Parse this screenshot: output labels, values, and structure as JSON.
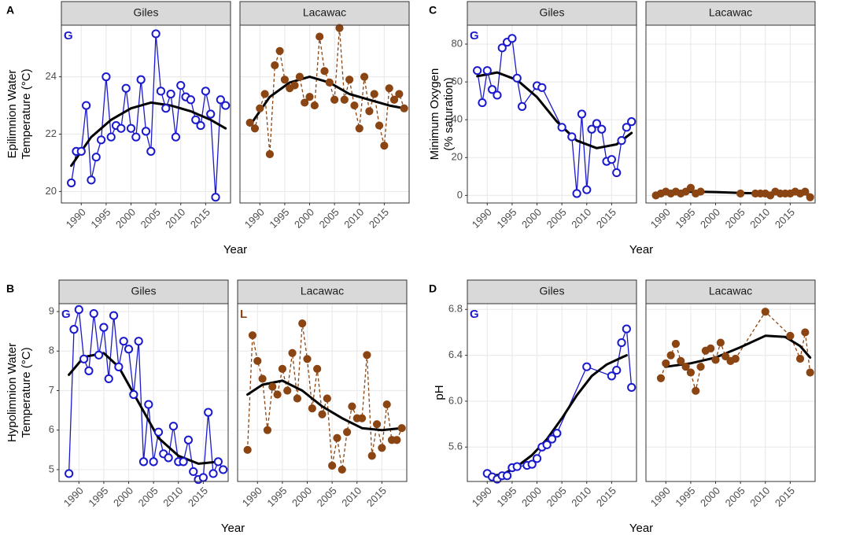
{
  "chart_data": [
    {
      "type": "line",
      "panel_label": "A",
      "ylabel": [
        "Epilimnion Water",
        "Temperature (°C)"
      ],
      "xlabel": "Year",
      "xlim": [
        1986,
        2020
      ],
      "xticks": [
        1990,
        1995,
        2000,
        2005,
        2010,
        2015
      ],
      "ylim": [
        19.6,
        25.8
      ],
      "yticks": [
        20,
        22,
        24
      ],
      "grid": true,
      "facets": [
        {
          "strip": "Giles",
          "annotation": "G",
          "series": [
            {
              "color": "#1a1acc",
              "marker": "open",
              "linestyle": "solid",
              "x": [
                1988,
                1989,
                1990,
                1991,
                1992,
                1993,
                1994,
                1995,
                1996,
                1997,
                1998,
                1999,
                2000,
                2001,
                2002,
                2003,
                2004,
                2005,
                2006,
                2007,
                2008,
                2009,
                2010,
                2011,
                2012,
                2013,
                2014,
                2015,
                2016,
                2017,
                2018,
                2019
              ],
              "values": [
                20.3,
                21.4,
                21.4,
                23.0,
                20.4,
                21.2,
                21.8,
                24.0,
                21.9,
                22.3,
                22.2,
                23.6,
                22.2,
                21.9,
                23.9,
                22.1,
                21.4,
                25.5,
                23.5,
                22.9,
                23.4,
                21.9,
                23.7,
                23.3,
                23.2,
                22.5,
                22.3,
                23.5,
                22.7,
                19.8,
                23.2,
                23.0
              ]
            },
            {
              "color": "#000000",
              "smooth": true,
              "x": [
                1988,
                1992,
                1996,
                2000,
                2004,
                2008,
                2012,
                2016,
                2019
              ],
              "values": [
                20.9,
                21.9,
                22.5,
                22.9,
                23.1,
                23.0,
                22.8,
                22.5,
                22.2
              ]
            }
          ]
        },
        {
          "strip": "Lacawac",
          "series": [
            {
              "color": "#8b4513",
              "marker": "filled",
              "linestyle": "dashed",
              "x": [
                1988,
                1989,
                1990,
                1991,
                1992,
                1993,
                1994,
                1995,
                1996,
                1997,
                1998,
                1999,
                2000,
                2001,
                2002,
                2003,
                2004,
                2005,
                2006,
                2007,
                2008,
                2009,
                2010,
                2011,
                2012,
                2013,
                2014,
                2015,
                2016,
                2017,
                2018,
                2019
              ],
              "values": [
                22.4,
                22.2,
                22.9,
                23.4,
                21.3,
                24.4,
                24.9,
                23.9,
                23.6,
                23.7,
                24.0,
                23.1,
                23.3,
                23.0,
                25.4,
                24.2,
                23.8,
                23.2,
                25.7,
                23.2,
                23.9,
                23.0,
                22.2,
                24.0,
                22.8,
                23.4,
                22.3,
                21.6,
                23.6,
                23.2,
                23.4,
                22.9
              ]
            },
            {
              "color": "#000000",
              "smooth": true,
              "x": [
                1988,
                1992,
                1996,
                2000,
                2004,
                2008,
                2012,
                2016,
                2019
              ],
              "values": [
                22.3,
                23.3,
                23.8,
                24.0,
                23.8,
                23.4,
                23.2,
                23.0,
                22.9
              ]
            }
          ]
        }
      ]
    },
    {
      "type": "line",
      "panel_label": "B",
      "ylabel": [
        "Hypolimnion Water",
        "Temperature (°C)"
      ],
      "xlabel": "Year",
      "xlim": [
        1986,
        2020
      ],
      "xticks": [
        1990,
        1995,
        2000,
        2005,
        2010,
        2015
      ],
      "ylim": [
        4.7,
        9.2
      ],
      "yticks": [
        5,
        6,
        7,
        8,
        9
      ],
      "grid": true,
      "facets": [
        {
          "strip": "Giles",
          "annotation": "G",
          "series": [
            {
              "color": "#1a1acc",
              "marker": "open",
              "linestyle": "solid",
              "x": [
                1988,
                1989,
                1990,
                1991,
                1992,
                1993,
                1994,
                1995,
                1996,
                1997,
                1998,
                1999,
                2000,
                2001,
                2002,
                2003,
                2004,
                2005,
                2006,
                2007,
                2008,
                2009,
                2010,
                2011,
                2012,
                2013,
                2014,
                2015,
                2016,
                2017,
                2018,
                2019
              ],
              "values": [
                4.9,
                8.55,
                9.05,
                7.8,
                7.5,
                8.95,
                7.9,
                8.6,
                7.3,
                8.9,
                7.6,
                8.25,
                8.05,
                6.9,
                8.25,
                5.2,
                6.65,
                5.2,
                5.95,
                5.4,
                5.3,
                6.1,
                5.2,
                5.2,
                5.75,
                4.95,
                4.75,
                4.8,
                6.45,
                4.9,
                5.2,
                5.0
              ]
            },
            {
              "color": "#000000",
              "smooth": true,
              "x": [
                1988,
                1991,
                1995,
                1998,
                2002,
                2006,
                2010,
                2014,
                2018
              ],
              "values": [
                7.4,
                7.85,
                7.95,
                7.6,
                6.7,
                5.8,
                5.35,
                5.15,
                5.2
              ]
            }
          ]
        },
        {
          "strip": "Lacawac",
          "annotation": "L",
          "series": [
            {
              "color": "#8b4513",
              "marker": "filled",
              "linestyle": "dashed",
              "x": [
                1988,
                1989,
                1990,
                1991,
                1992,
                1993,
                1994,
                1995,
                1996,
                1997,
                1998,
                1999,
                2000,
                2001,
                2002,
                2003,
                2004,
                2005,
                2006,
                2007,
                2008,
                2009,
                2010,
                2011,
                2012,
                2013,
                2014,
                2015,
                2016,
                2017,
                2018,
                2019
              ],
              "values": [
                5.5,
                8.4,
                7.75,
                7.3,
                6.0,
                7.1,
                6.9,
                7.55,
                7.0,
                7.95,
                6.8,
                8.7,
                7.8,
                6.55,
                7.55,
                6.4,
                6.8,
                5.1,
                5.8,
                5.0,
                5.95,
                6.6,
                6.3,
                6.3,
                7.9,
                5.35,
                6.15,
                5.55,
                6.65,
                5.75,
                5.75,
                6.05
              ]
            },
            {
              "color": "#000000",
              "smooth": true,
              "x": [
                1988,
                1991,
                1995,
                1999,
                2003,
                2007,
                2011,
                2015,
                2019
              ],
              "values": [
                6.9,
                7.15,
                7.25,
                7.0,
                6.6,
                6.3,
                6.05,
                6.0,
                6.05
              ]
            }
          ]
        }
      ]
    },
    {
      "type": "line",
      "panel_label": "C",
      "ylabel": [
        "Minimum Oxygen",
        "(% saturation)"
      ],
      "xlabel": "Year",
      "xlim": [
        1986,
        2020
      ],
      "xticks": [
        1990,
        1995,
        2000,
        2005,
        2010,
        2015
      ],
      "ylim": [
        -4,
        90
      ],
      "yticks": [
        0,
        20,
        40,
        60,
        80
      ],
      "grid": true,
      "facets": [
        {
          "strip": "Giles",
          "annotation": "G",
          "series": [
            {
              "color": "#1a1acc",
              "marker": "open",
              "linestyle": "solid",
              "x": [
                1988,
                1989,
                1990,
                1991,
                1992,
                1993,
                1994,
                1995,
                1996,
                1997,
                2000,
                2001,
                2005,
                2007,
                2008,
                2009,
                2010,
                2011,
                2012,
                2013,
                2014,
                2015,
                2016,
                2017,
                2018,
                2019
              ],
              "values": [
                66,
                49,
                66,
                56,
                53,
                78,
                81,
                83,
                62,
                47,
                58,
                57,
                36,
                31,
                1,
                43,
                3,
                35,
                38,
                35,
                18,
                19,
                12,
                29,
                36,
                39
              ]
            },
            {
              "color": "#000000",
              "smooth": true,
              "x": [
                1988,
                1992,
                1996,
                2000,
                2004,
                2008,
                2012,
                2016,
                2019
              ],
              "values": [
                63,
                65,
                61,
                52,
                39,
                29,
                25,
                27,
                33
              ]
            }
          ]
        },
        {
          "strip": "Lacawac",
          "series": [
            {
              "color": "#8b4513",
              "marker": "filled",
              "linestyle": "dashed",
              "x": [
                1988,
                1989,
                1990,
                1991,
                1992,
                1993,
                1994,
                1995,
                1996,
                1997,
                2005,
                2008,
                2009,
                2010,
                2011,
                2012,
                2013,
                2014,
                2015,
                2016,
                2017,
                2018,
                2019
              ],
              "values": [
                0,
                1,
                2,
                1,
                2,
                1,
                2,
                4,
                1,
                2,
                1,
                1,
                1,
                1,
                0,
                2,
                1,
                1,
                1,
                2,
                1,
                2,
                -1
              ]
            },
            {
              "color": "#000000",
              "smooth": true,
              "x": [
                1988,
                1995,
                2000,
                2005,
                2010,
                2015,
                2019
              ],
              "values": [
                1,
                2,
                1.8,
                1.3,
                1,
                1,
                0.5
              ]
            }
          ]
        }
      ]
    },
    {
      "type": "line",
      "panel_label": "D",
      "ylabel": [
        "pH"
      ],
      "xlabel": "Year",
      "xlim": [
        1986,
        2020
      ],
      "xticks": [
        1990,
        1995,
        2000,
        2005,
        2010,
        2015
      ],
      "ylim": [
        5.3,
        6.85
      ],
      "yticks": [
        5.6,
        {
          "value": 6,
          "label": "6.0"
        },
        6.4,
        6.8
      ],
      "grid": true,
      "facets": [
        {
          "strip": "Giles",
          "annotation": "G",
          "series": [
            {
              "color": "#1a1acc",
              "marker": "open",
              "linestyle": "solid",
              "x": [
                1990,
                1991,
                1992,
                1993,
                1994,
                1995,
                1996,
                1998,
                1999,
                2000,
                2001,
                2002,
                2003,
                2004,
                2010,
                2015,
                2016,
                2017,
                2018,
                2019
              ],
              "values": [
                5.37,
                5.34,
                5.32,
                5.35,
                5.35,
                5.42,
                5.43,
                5.44,
                5.45,
                5.5,
                5.6,
                5.62,
                5.67,
                5.72,
                6.3,
                6.22,
                6.27,
                6.51,
                6.63,
                6.12
              ]
            },
            {
              "color": "#000000",
              "smooth": true,
              "x": [
                1990,
                1993,
                1996,
                1999,
                2002,
                2005,
                2008,
                2011,
                2014,
                2017,
                2018
              ],
              "values": [
                5.35,
                5.36,
                5.43,
                5.53,
                5.67,
                5.85,
                6.05,
                6.22,
                6.32,
                6.38,
                6.4
              ]
            }
          ]
        },
        {
          "strip": "Lacawac",
          "series": [
            {
              "color": "#8b4513",
              "marker": "filled",
              "linestyle": "dashed",
              "x": [
                1989,
                1990,
                1991,
                1992,
                1993,
                1994,
                1995,
                1996,
                1997,
                1998,
                1999,
                2000,
                2001,
                2002,
                2003,
                2004,
                2010,
                2015,
                2017,
                2018,
                2019
              ],
              "values": [
                6.2,
                6.33,
                6.4,
                6.5,
                6.35,
                6.3,
                6.25,
                6.09,
                6.3,
                6.44,
                6.46,
                6.36,
                6.51,
                6.39,
                6.35,
                6.37,
                6.78,
                6.57,
                6.37,
                6.6,
                6.25
              ]
            },
            {
              "color": "#000000",
              "smooth": true,
              "x": [
                1990,
                1995,
                2000,
                2005,
                2010,
                2014,
                2017,
                2019
              ],
              "values": [
                6.3,
                6.33,
                6.38,
                6.47,
                6.57,
                6.56,
                6.48,
                6.38
              ]
            }
          ]
        }
      ]
    }
  ]
}
